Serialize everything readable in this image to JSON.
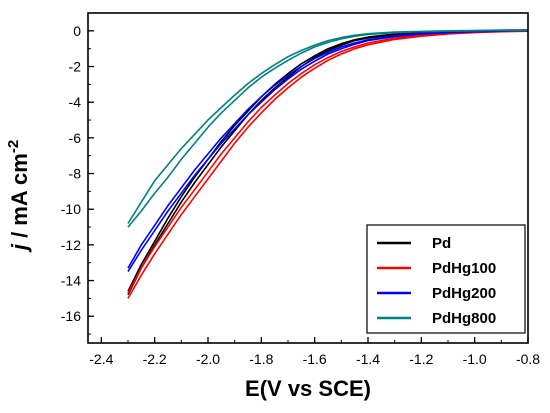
{
  "chart_data": {
    "type": "line",
    "xlabel": "E(V vs SCE)",
    "ylabel_italic": "j",
    "ylabel_rest": " / mA cm",
    "ylabel_sup": "-2",
    "xlim": [
      -2.45,
      -0.8
    ],
    "ylim": [
      -17.5,
      1
    ],
    "x_ticks": [
      -2.4,
      -2.2,
      -2.0,
      -1.8,
      -1.6,
      -1.4,
      -1.2,
      -1.0,
      -0.8
    ],
    "y_ticks": [
      0,
      -2,
      -4,
      -6,
      -8,
      -10,
      -12,
      -14,
      -16
    ],
    "x_tick_labels": [
      "-2.4",
      "-2.2",
      "-2.0",
      "-1.8",
      "-1.6",
      "-1.4",
      "-1.2",
      "-1.0",
      "-0.8"
    ],
    "y_tick_labels": [
      "0",
      "-2",
      "-4",
      "-6",
      "-8",
      "-10",
      "-12",
      "-14",
      "-16"
    ],
    "legend_position": "bottom-right",
    "series": [
      {
        "name": "Pd",
        "color": "#000000",
        "forward": [
          [
            -2.3,
            -14.8
          ],
          [
            -2.25,
            -13.3
          ],
          [
            -2.2,
            -12.0
          ],
          [
            -2.15,
            -10.8
          ],
          [
            -2.1,
            -9.6
          ],
          [
            -2.05,
            -8.5
          ],
          [
            -2.0,
            -7.5
          ],
          [
            -1.95,
            -6.5
          ],
          [
            -1.9,
            -5.6
          ],
          [
            -1.85,
            -4.7
          ],
          [
            -1.8,
            -3.9
          ],
          [
            -1.75,
            -3.2
          ],
          [
            -1.7,
            -2.6
          ],
          [
            -1.65,
            -2.0
          ],
          [
            -1.6,
            -1.5
          ],
          [
            -1.55,
            -1.1
          ],
          [
            -1.5,
            -0.8
          ],
          [
            -1.45,
            -0.55
          ],
          [
            -1.4,
            -0.4
          ],
          [
            -1.3,
            -0.22
          ],
          [
            -1.2,
            -0.12
          ],
          [
            -1.1,
            -0.06
          ],
          [
            -1.0,
            -0.02
          ],
          [
            -0.9,
            0.02
          ],
          [
            -0.8,
            0.03
          ]
        ],
        "reverse": [
          [
            -2.3,
            -14.6
          ],
          [
            -2.25,
            -13.1
          ],
          [
            -2.2,
            -11.8
          ],
          [
            -2.15,
            -10.5
          ],
          [
            -2.1,
            -9.3
          ],
          [
            -2.05,
            -8.2
          ],
          [
            -2.0,
            -7.2
          ],
          [
            -1.95,
            -6.2
          ],
          [
            -1.9,
            -5.3
          ],
          [
            -1.85,
            -4.5
          ],
          [
            -1.8,
            -3.7
          ],
          [
            -1.75,
            -3.0
          ],
          [
            -1.7,
            -2.4
          ],
          [
            -1.65,
            -1.85
          ],
          [
            -1.6,
            -1.4
          ],
          [
            -1.55,
            -1.0
          ],
          [
            -1.5,
            -0.72
          ],
          [
            -1.45,
            -0.5
          ],
          [
            -1.4,
            -0.35
          ],
          [
            -1.3,
            -0.18
          ],
          [
            -1.2,
            -0.09
          ],
          [
            -1.1,
            -0.04
          ],
          [
            -1.0,
            0.0
          ],
          [
            -0.9,
            0.03
          ],
          [
            -0.8,
            0.05
          ]
        ]
      },
      {
        "name": "PdHg100",
        "color": "#ff0000",
        "forward": [
          [
            -2.3,
            -15.0
          ],
          [
            -2.25,
            -13.7
          ],
          [
            -2.2,
            -12.5
          ],
          [
            -2.15,
            -11.4
          ],
          [
            -2.1,
            -10.3
          ],
          [
            -2.05,
            -9.3
          ],
          [
            -2.0,
            -8.3
          ],
          [
            -1.95,
            -7.3
          ],
          [
            -1.9,
            -6.3
          ],
          [
            -1.85,
            -5.4
          ],
          [
            -1.8,
            -4.6
          ],
          [
            -1.75,
            -3.85
          ],
          [
            -1.7,
            -3.2
          ],
          [
            -1.65,
            -2.6
          ],
          [
            -1.6,
            -2.1
          ],
          [
            -1.55,
            -1.65
          ],
          [
            -1.5,
            -1.3
          ],
          [
            -1.45,
            -1.0
          ],
          [
            -1.4,
            -0.78
          ],
          [
            -1.3,
            -0.48
          ],
          [
            -1.2,
            -0.3
          ],
          [
            -1.1,
            -0.18
          ],
          [
            -1.0,
            -0.1
          ],
          [
            -0.9,
            -0.05
          ],
          [
            -0.8,
            -0.02
          ]
        ],
        "reverse": [
          [
            -2.3,
            -14.7
          ],
          [
            -2.25,
            -13.3
          ],
          [
            -2.2,
            -12.1
          ],
          [
            -2.15,
            -11.0
          ],
          [
            -2.1,
            -9.9
          ],
          [
            -2.05,
            -8.9
          ],
          [
            -2.0,
            -7.9
          ],
          [
            -1.95,
            -6.9
          ],
          [
            -1.9,
            -6.0
          ],
          [
            -1.85,
            -5.1
          ],
          [
            -1.8,
            -4.3
          ],
          [
            -1.75,
            -3.6
          ],
          [
            -1.7,
            -2.95
          ],
          [
            -1.65,
            -2.4
          ],
          [
            -1.6,
            -1.9
          ],
          [
            -1.55,
            -1.5
          ],
          [
            -1.5,
            -1.15
          ],
          [
            -1.45,
            -0.9
          ],
          [
            -1.4,
            -0.68
          ],
          [
            -1.3,
            -0.4
          ],
          [
            -1.2,
            -0.24
          ],
          [
            -1.1,
            -0.13
          ],
          [
            -1.0,
            -0.06
          ],
          [
            -0.9,
            -0.02
          ],
          [
            -0.8,
            0.0
          ]
        ]
      },
      {
        "name": "PdHg200",
        "color": "#0000ff",
        "forward": [
          [
            -2.3,
            -13.5
          ],
          [
            -2.25,
            -12.3
          ],
          [
            -2.2,
            -11.2
          ],
          [
            -2.15,
            -10.1
          ],
          [
            -2.1,
            -9.1
          ],
          [
            -2.05,
            -8.1
          ],
          [
            -2.0,
            -7.2
          ],
          [
            -1.95,
            -6.3
          ],
          [
            -1.9,
            -5.5
          ],
          [
            -1.85,
            -4.7
          ],
          [
            -1.8,
            -4.0
          ],
          [
            -1.75,
            -3.3
          ],
          [
            -1.7,
            -2.7
          ],
          [
            -1.65,
            -2.15
          ],
          [
            -1.6,
            -1.7
          ],
          [
            -1.55,
            -1.3
          ],
          [
            -1.5,
            -1.0
          ],
          [
            -1.45,
            -0.75
          ],
          [
            -1.4,
            -0.55
          ],
          [
            -1.3,
            -0.32
          ],
          [
            -1.2,
            -0.18
          ],
          [
            -1.1,
            -0.1
          ],
          [
            -1.0,
            -0.05
          ],
          [
            -0.9,
            -0.01
          ],
          [
            -0.8,
            0.02
          ]
        ],
        "reverse": [
          [
            -2.3,
            -13.3
          ],
          [
            -2.25,
            -12.0
          ],
          [
            -2.2,
            -10.9
          ],
          [
            -2.15,
            -9.8
          ],
          [
            -2.1,
            -8.8
          ],
          [
            -2.05,
            -7.8
          ],
          [
            -2.0,
            -6.9
          ],
          [
            -1.95,
            -6.0
          ],
          [
            -1.9,
            -5.2
          ],
          [
            -1.85,
            -4.4
          ],
          [
            -1.8,
            -3.7
          ],
          [
            -1.75,
            -3.05
          ],
          [
            -1.7,
            -2.5
          ],
          [
            -1.65,
            -2.0
          ],
          [
            -1.6,
            -1.55
          ],
          [
            -1.55,
            -1.2
          ],
          [
            -1.5,
            -0.9
          ],
          [
            -1.45,
            -0.68
          ],
          [
            -1.4,
            -0.5
          ],
          [
            -1.3,
            -0.28
          ],
          [
            -1.2,
            -0.15
          ],
          [
            -1.1,
            -0.08
          ],
          [
            -1.0,
            -0.03
          ],
          [
            -0.9,
            0.0
          ],
          [
            -0.8,
            0.03
          ]
        ]
      },
      {
        "name": "PdHg800",
        "color": "#008080",
        "forward": [
          [
            -2.3,
            -11.0
          ],
          [
            -2.25,
            -10.1
          ],
          [
            -2.2,
            -9.1
          ],
          [
            -2.15,
            -8.2
          ],
          [
            -2.1,
            -7.2
          ],
          [
            -2.05,
            -6.3
          ],
          [
            -2.0,
            -5.4
          ],
          [
            -1.95,
            -4.6
          ],
          [
            -1.9,
            -3.9
          ],
          [
            -1.85,
            -3.2
          ],
          [
            -1.8,
            -2.6
          ],
          [
            -1.75,
            -2.1
          ],
          [
            -1.7,
            -1.65
          ],
          [
            -1.65,
            -1.25
          ],
          [
            -1.6,
            -0.9
          ],
          [
            -1.55,
            -0.65
          ],
          [
            -1.5,
            -0.45
          ],
          [
            -1.45,
            -0.3
          ],
          [
            -1.4,
            -0.2
          ],
          [
            -1.3,
            -0.1
          ],
          [
            -1.2,
            -0.05
          ],
          [
            -1.1,
            -0.02
          ],
          [
            -1.0,
            0.0
          ],
          [
            -0.9,
            0.02
          ],
          [
            -0.8,
            0.03
          ]
        ],
        "reverse": [
          [
            -2.3,
            -10.8
          ],
          [
            -2.25,
            -9.6
          ],
          [
            -2.2,
            -8.4
          ],
          [
            -2.15,
            -7.5
          ],
          [
            -2.1,
            -6.6
          ],
          [
            -2.05,
            -5.8
          ],
          [
            -2.0,
            -5.0
          ],
          [
            -1.95,
            -4.3
          ],
          [
            -1.9,
            -3.6
          ],
          [
            -1.85,
            -2.95
          ],
          [
            -1.8,
            -2.4
          ],
          [
            -1.75,
            -1.9
          ],
          [
            -1.7,
            -1.45
          ],
          [
            -1.65,
            -1.1
          ],
          [
            -1.6,
            -0.8
          ],
          [
            -1.55,
            -0.55
          ],
          [
            -1.5,
            -0.38
          ],
          [
            -1.45,
            -0.25
          ],
          [
            -1.4,
            -0.16
          ],
          [
            -1.3,
            -0.07
          ],
          [
            -1.2,
            -0.03
          ],
          [
            -1.1,
            0.0
          ],
          [
            -1.0,
            0.02
          ],
          [
            -0.9,
            0.04
          ],
          [
            -0.8,
            0.05
          ]
        ]
      }
    ]
  }
}
